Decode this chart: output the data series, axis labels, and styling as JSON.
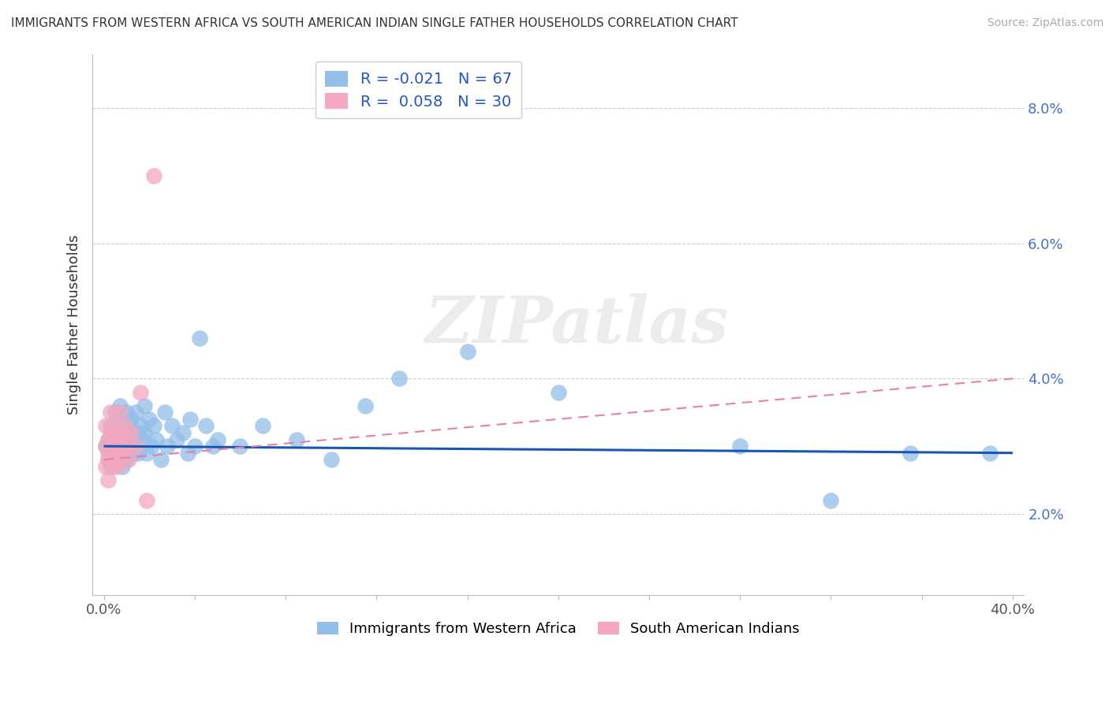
{
  "title": "IMMIGRANTS FROM WESTERN AFRICA VS SOUTH AMERICAN INDIAN SINGLE FATHER HOUSEHOLDS CORRELATION CHART",
  "source": "Source: ZipAtlas.com",
  "ylabel": "Single Father Households",
  "ytick_vals": [
    0.02,
    0.04,
    0.06,
    0.08
  ],
  "ytick_labels": [
    "2.0%",
    "4.0%",
    "6.0%",
    "8.0%"
  ],
  "ymin": 0.008,
  "ymax": 0.088,
  "xmin": -0.005,
  "xmax": 0.405,
  "blue_R": -0.021,
  "blue_N": 67,
  "pink_R": 0.058,
  "pink_N": 30,
  "blue_color": "#92BEE8",
  "pink_color": "#F4A7BE",
  "blue_line_color": "#1A56B0",
  "pink_line_color": "#E87FA8",
  "watermark_text": "ZIPatlas",
  "legend_label_blue": "Immigrants from Western Africa",
  "legend_label_pink": "South American Indians",
  "blue_trend_x0": 0.0,
  "blue_trend_y0": 0.03,
  "blue_trend_x1": 0.4,
  "blue_trend_y1": 0.029,
  "pink_trend_x0": 0.0,
  "pink_trend_y0": 0.028,
  "pink_trend_x1": 0.4,
  "pink_trend_y1": 0.04,
  "blue_x": [
    0.001,
    0.002,
    0.002,
    0.003,
    0.003,
    0.003,
    0.004,
    0.004,
    0.005,
    0.005,
    0.005,
    0.006,
    0.006,
    0.007,
    0.007,
    0.007,
    0.008,
    0.008,
    0.009,
    0.009,
    0.01,
    0.01,
    0.01,
    0.011,
    0.011,
    0.012,
    0.012,
    0.013,
    0.013,
    0.014,
    0.014,
    0.015,
    0.015,
    0.016,
    0.017,
    0.018,
    0.018,
    0.019,
    0.02,
    0.021,
    0.022,
    0.023,
    0.025,
    0.027,
    0.028,
    0.03,
    0.032,
    0.035,
    0.037,
    0.038,
    0.04,
    0.042,
    0.045,
    0.048,
    0.05,
    0.06,
    0.07,
    0.085,
    0.1,
    0.115,
    0.13,
    0.16,
    0.2,
    0.28,
    0.32,
    0.355,
    0.39
  ],
  "blue_y": [
    0.03,
    0.031,
    0.028,
    0.033,
    0.03,
    0.027,
    0.032,
    0.029,
    0.035,
    0.031,
    0.028,
    0.034,
    0.03,
    0.036,
    0.032,
    0.029,
    0.03,
    0.027,
    0.033,
    0.031,
    0.035,
    0.031,
    0.028,
    0.033,
    0.03,
    0.034,
    0.031,
    0.032,
    0.029,
    0.035,
    0.031,
    0.032,
    0.029,
    0.033,
    0.031,
    0.036,
    0.032,
    0.029,
    0.034,
    0.03,
    0.033,
    0.031,
    0.028,
    0.035,
    0.03,
    0.033,
    0.031,
    0.032,
    0.029,
    0.034,
    0.03,
    0.046,
    0.033,
    0.03,
    0.031,
    0.03,
    0.033,
    0.031,
    0.028,
    0.036,
    0.04,
    0.044,
    0.038,
    0.03,
    0.022,
    0.029,
    0.029
  ],
  "pink_x": [
    0.001,
    0.001,
    0.001,
    0.002,
    0.002,
    0.002,
    0.002,
    0.003,
    0.003,
    0.003,
    0.003,
    0.004,
    0.004,
    0.004,
    0.005,
    0.005,
    0.006,
    0.006,
    0.007,
    0.007,
    0.008,
    0.008,
    0.009,
    0.01,
    0.011,
    0.012,
    0.014,
    0.016,
    0.019,
    0.022
  ],
  "pink_y": [
    0.03,
    0.027,
    0.033,
    0.028,
    0.031,
    0.025,
    0.029,
    0.032,
    0.028,
    0.035,
    0.03,
    0.027,
    0.032,
    0.029,
    0.033,
    0.03,
    0.027,
    0.031,
    0.035,
    0.028,
    0.032,
    0.029,
    0.033,
    0.03,
    0.028,
    0.032,
    0.03,
    0.038,
    0.022,
    0.07
  ]
}
